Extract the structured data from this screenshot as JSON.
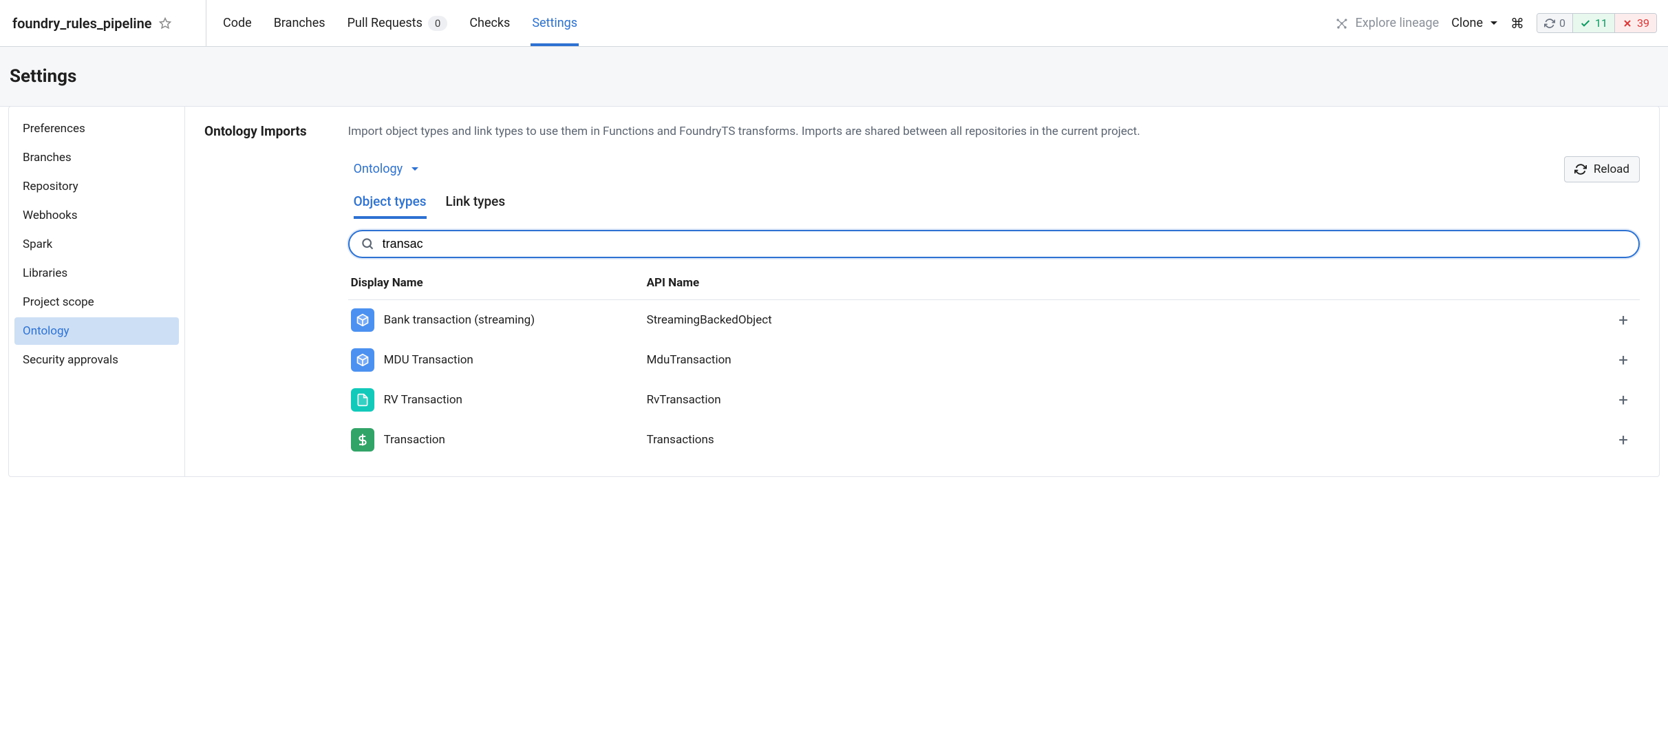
{
  "repo": {
    "name": "foundry_rules_pipeline"
  },
  "tabs": {
    "code": "Code",
    "branches": "Branches",
    "pull_requests": "Pull Requests",
    "pr_count": "0",
    "checks": "Checks",
    "settings": "Settings"
  },
  "actions": {
    "explore_lineage": "Explore lineage",
    "clone": "Clone",
    "status_refresh": "0",
    "status_pass": "11",
    "status_fail": "39"
  },
  "page": {
    "title": "Settings"
  },
  "sidenav": {
    "preferences": "Preferences",
    "branches": "Branches",
    "repository": "Repository",
    "webhooks": "Webhooks",
    "spark": "Spark",
    "libraries": "Libraries",
    "project_scope": "Project scope",
    "ontology": "Ontology",
    "security_approvals": "Security approvals"
  },
  "section": {
    "label": "Ontology Imports",
    "desc": "Import object types and link types to use them in Functions and FoundryTS transforms. Imports are shared between all repositories in the current project.",
    "ontology_select": "Ontology",
    "reload": "Reload",
    "tab_object": "Object types",
    "tab_link": "Link types",
    "search_value": "transac",
    "col_display": "Display Name",
    "col_api": "API Name"
  },
  "rows": [
    {
      "display": "Bank transaction (streaming)",
      "api": "StreamingBackedObject",
      "icon": "cube",
      "color": "ic-blue"
    },
    {
      "display": "MDU Transaction",
      "api": "MduTransaction",
      "icon": "cube",
      "color": "ic-blue"
    },
    {
      "display": "RV Transaction",
      "api": "RvTransaction",
      "icon": "doc",
      "color": "ic-teal"
    },
    {
      "display": "Transaction",
      "api": "Transactions",
      "icon": "dollar",
      "color": "ic-green"
    }
  ]
}
